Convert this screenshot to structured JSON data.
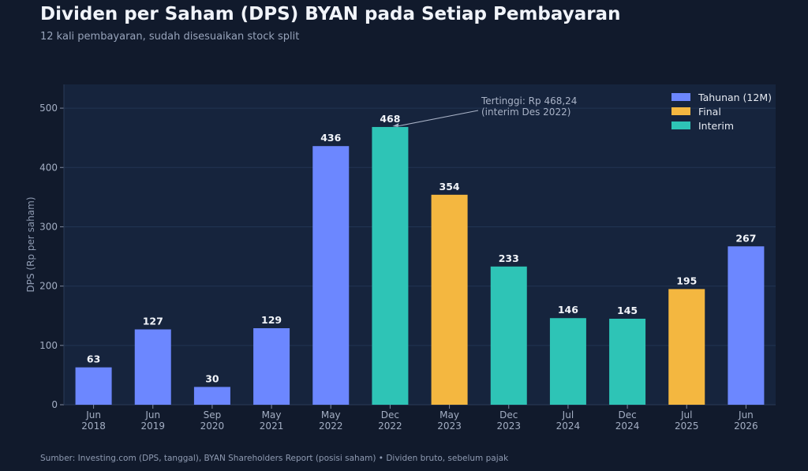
{
  "header": {
    "title": "Dividen per Saham (DPS) BYAN pada Setiap Pembayaran",
    "subtitle": "12 kali pembayaran, sudah disesuaikan stock split"
  },
  "footer": {
    "source": "Sumber: Investing.com (DPS, tanggal), BYAN Shareholders Report (posisi saham) • Dividen bruto, sebelum pajak"
  },
  "chart_data": {
    "type": "bar",
    "title": "Dividen per Saham (DPS) BYAN pada Setiap Pembayaran",
    "subtitle": "12 kali pembayaran, sudah disesuaikan stock split",
    "xlabel": "",
    "ylabel": "DPS (Rp per saham)",
    "ylim": [
      0,
      540
    ],
    "yticks": [
      0,
      100,
      200,
      300,
      400,
      500
    ],
    "grid": true,
    "legend_position": "top-right",
    "categories": [
      [
        "Jun",
        "2018"
      ],
      [
        "Jun",
        "2019"
      ],
      [
        "Sep",
        "2020"
      ],
      [
        "May",
        "2021"
      ],
      [
        "May",
        "2022"
      ],
      [
        "Dec",
        "2022"
      ],
      [
        "May",
        "2023"
      ],
      [
        "Dec",
        "2023"
      ],
      [
        "Jul",
        "2024"
      ],
      [
        "Dec",
        "2024"
      ],
      [
        "Jul",
        "2025"
      ],
      [
        "Jun",
        "2026"
      ]
    ],
    "values": [
      63,
      127,
      30,
      129,
      436,
      468.24,
      354,
      233,
      146,
      145,
      195,
      267
    ],
    "data_labels": [
      "63",
      "127",
      "30",
      "129",
      "436",
      "468",
      "354",
      "233",
      "146",
      "145",
      "195",
      "267"
    ],
    "types": [
      "Tahunan (12M)",
      "Tahunan (12M)",
      "Tahunan (12M)",
      "Tahunan (12M)",
      "Tahunan (12M)",
      "Interim",
      "Final",
      "Interim",
      "Interim",
      "Interim",
      "Final",
      "Tahunan (12M)"
    ],
    "legend": [
      {
        "name": "Tahunan (12M)",
        "color": "#6c87ff"
      },
      {
        "name": "Final",
        "color": "#f4b740"
      },
      {
        "name": "Interim",
        "color": "#2ec4b6"
      }
    ],
    "annotation": {
      "lines": [
        "Tertinggi: Rp 468,24",
        "(interim Des 2022)"
      ],
      "target_index": 5
    }
  },
  "colors": {
    "background": "#111a2c",
    "plot_background": "#16243d",
    "grid": "#223553"
  }
}
